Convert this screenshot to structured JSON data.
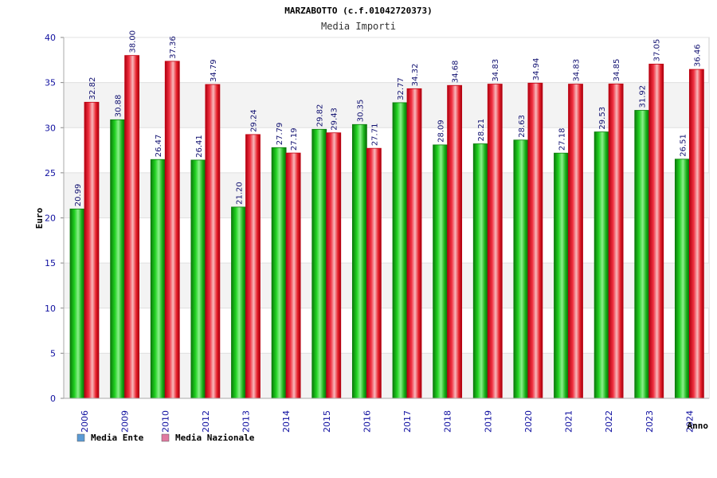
{
  "chart_data": {
    "type": "bar",
    "title": "MARZABOTTO (c.f.01042720373)",
    "subtitle": "Media Importi",
    "xlabel": "Anno",
    "ylabel": "Euro",
    "ylim": [
      0,
      40
    ],
    "yticks": [
      0,
      5,
      10,
      15,
      20,
      25,
      30,
      35,
      40
    ],
    "grid": true,
    "legend_position": "bottom-left",
    "categories": [
      "2006",
      "2009",
      "2010",
      "2012",
      "2013",
      "2014",
      "2015",
      "2016",
      "2017",
      "2018",
      "2019",
      "2020",
      "2021",
      "2022",
      "2023",
      "2024"
    ],
    "series": [
      {
        "name": "Media Ente",
        "color": "#14b814",
        "legend_color": "#5b9bd5",
        "values": [
          20.99,
          30.88,
          26.47,
          26.41,
          21.2,
          27.79,
          29.82,
          30.35,
          32.77,
          28.09,
          28.21,
          28.63,
          27.18,
          29.53,
          31.92,
          26.51
        ],
        "labels": [
          "20.99",
          "30.88",
          "26.47",
          "26.41",
          "21.20",
          "27.79",
          "29.82",
          "30.35",
          "32.77",
          "28.09",
          "28.21",
          "28.63",
          "27.18",
          "29.53",
          "31.92",
          "26.51"
        ]
      },
      {
        "name": "Media Nazionale",
        "color": "#e8202a",
        "legend_color": "#e07aa0",
        "values": [
          32.82,
          38.0,
          37.36,
          34.79,
          29.24,
          27.19,
          29.43,
          27.71,
          34.32,
          34.68,
          34.83,
          34.94,
          34.83,
          34.85,
          37.05,
          36.46
        ],
        "labels": [
          "32.82",
          "38.00",
          "37.36",
          "34.79",
          "29.24",
          "27.19",
          "29.43",
          "27.71",
          "34.32",
          "34.68",
          "34.83",
          "34.94",
          "34.83",
          "34.85",
          "37.05",
          "36.46"
        ]
      }
    ]
  }
}
